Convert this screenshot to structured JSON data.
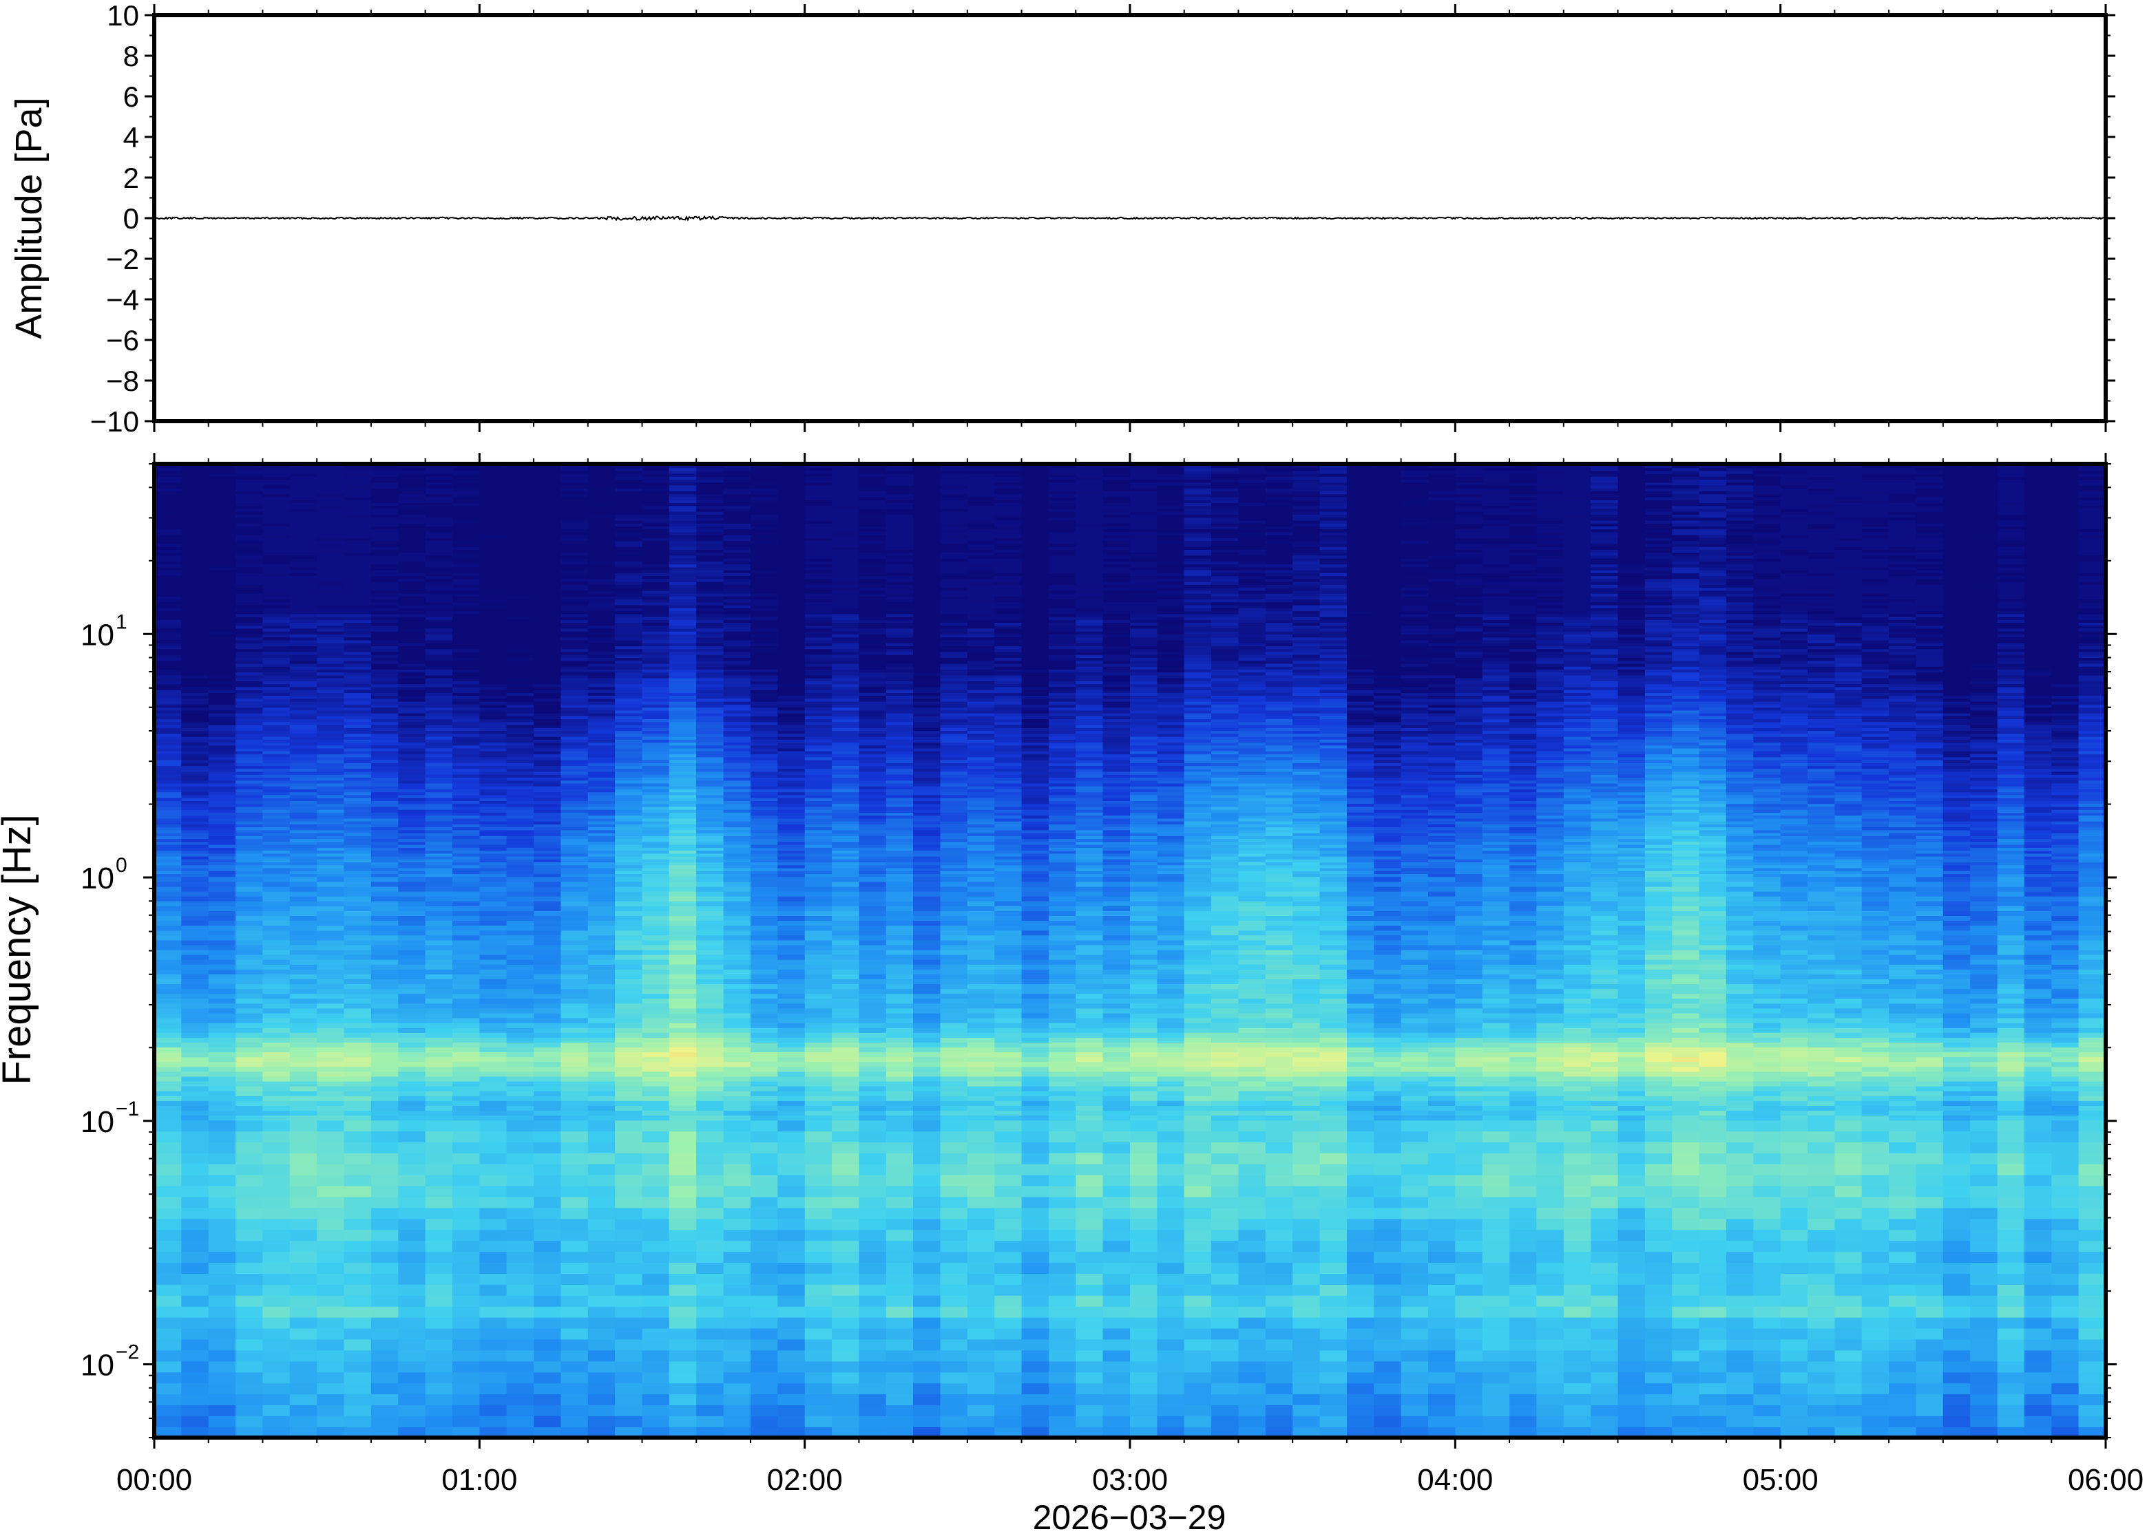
{
  "chart_data": [
    {
      "type": "line",
      "ylabel": "Amplitude [Pa]",
      "ylim": [
        -10,
        10
      ],
      "yticks": [
        10,
        8,
        6,
        4,
        2,
        0,
        -2,
        -4,
        -6,
        -8,
        -10
      ],
      "ytick_labels": [
        "10",
        "8",
        "6",
        "4",
        "2",
        "0",
        "−2",
        "−4",
        "−6",
        "−8",
        "−10"
      ],
      "xlim": [
        "00:00",
        "06:00"
      ],
      "series": [
        {
          "values_summary": "near-zero noise trace across the full interval",
          "x": [
            "00:00",
            "01:00",
            "02:00",
            "03:00",
            "04:00",
            "05:00",
            "06:00"
          ],
          "y": [
            0,
            0,
            0,
            0,
            0,
            0,
            0
          ]
        }
      ],
      "grid": false
    },
    {
      "type": "heatmap",
      "ylabel": "Frequency [Hz]",
      "yscale": "log",
      "ylim": [
        0.005,
        50
      ],
      "yticks": [
        10,
        1,
        0.1,
        0.01
      ],
      "ytick_labels": [
        {
          "base": "10",
          "exp": "1"
        },
        {
          "base": "10",
          "exp": "0"
        },
        {
          "base": "10",
          "exp": "−1"
        },
        {
          "base": "10",
          "exp": "−2"
        }
      ],
      "xlabel": "2026−03−29",
      "xticks": [
        "00:00",
        "01:00",
        "02:00",
        "03:00",
        "04:00",
        "05:00",
        "06:00"
      ],
      "xlim": [
        "00:00",
        "06:00"
      ],
      "colormap": [
        "#0b0a78",
        "#1437d9",
        "#1f8ef2",
        "#3fd0f0",
        "#9cf0b0",
        "#eef48a",
        "#f6b060"
      ],
      "features": {
        "microseism_band_hz": 0.18,
        "broadband_energy_bursts": [
          "01:35",
          "03:25",
          "04:40"
        ]
      }
    }
  ]
}
